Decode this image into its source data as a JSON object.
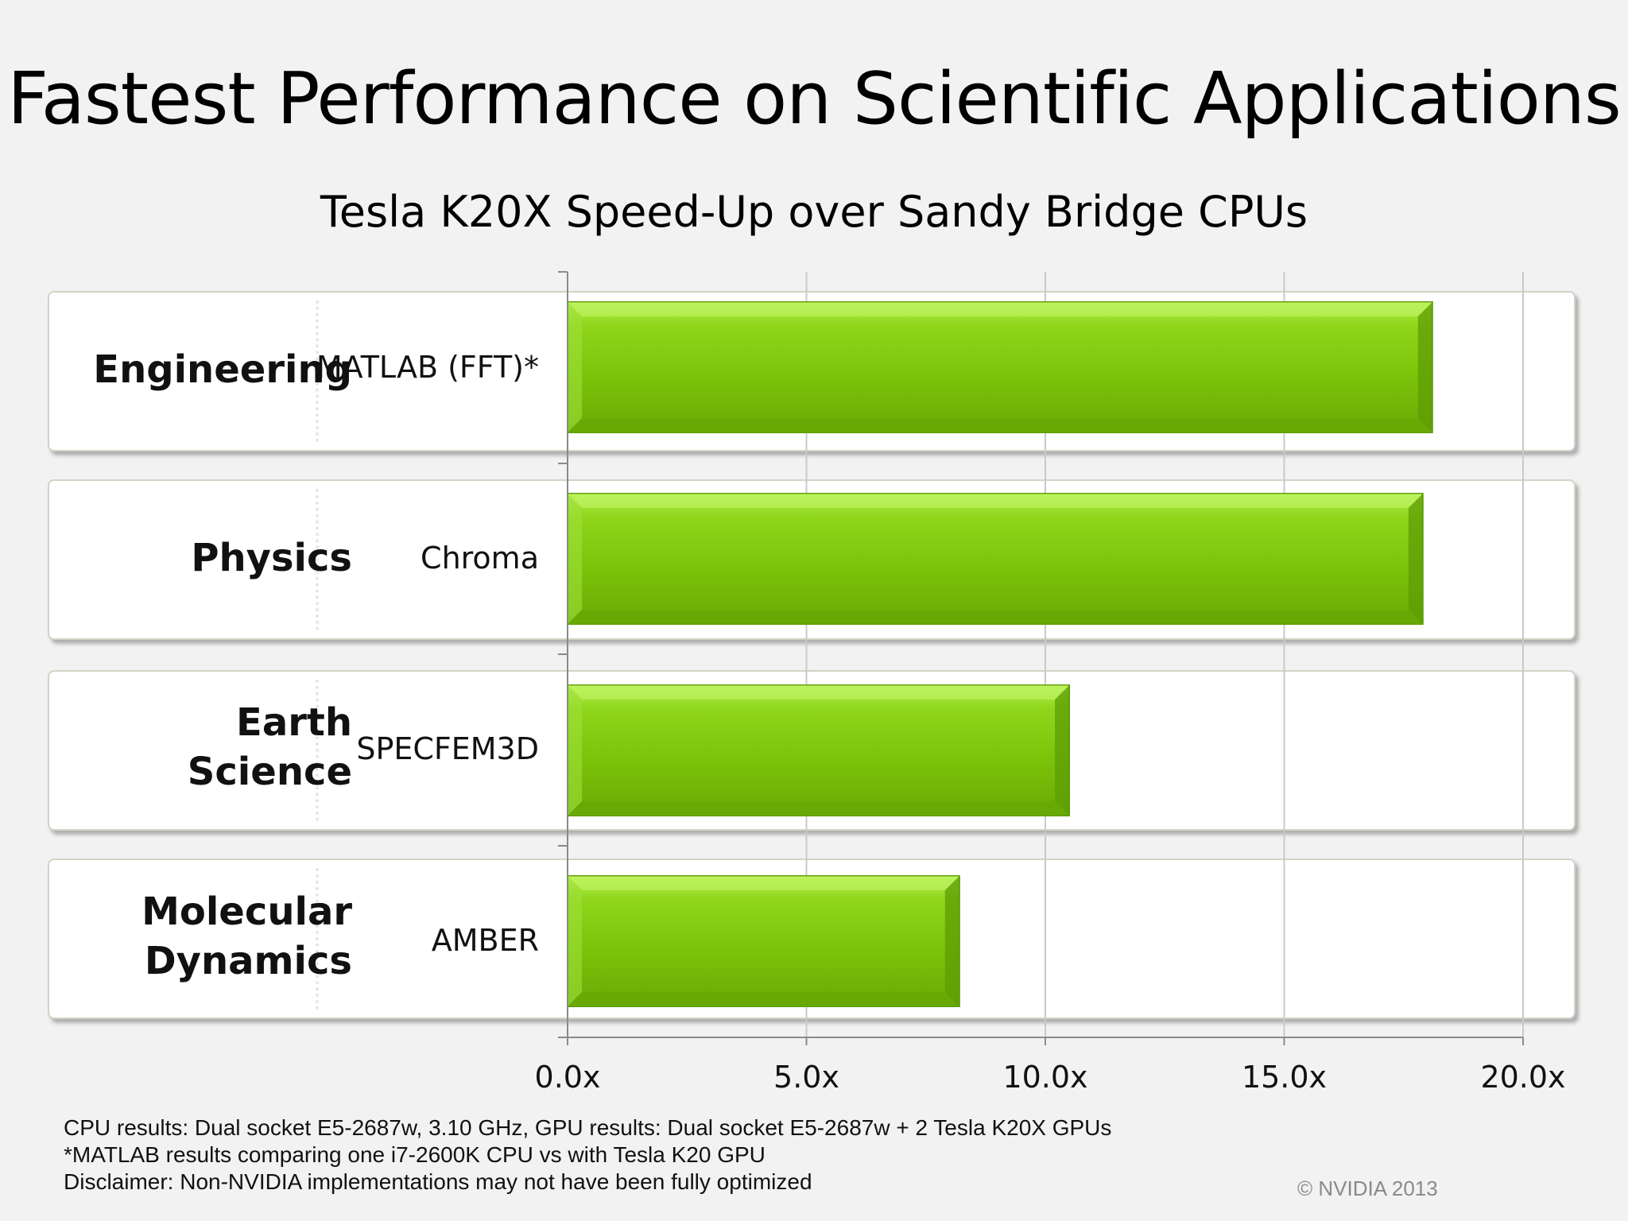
{
  "title": "Fastest Performance on Scientific Applications",
  "chart_data": {
    "type": "bar",
    "orientation": "horizontal",
    "title": "Tesla K20X Speed-Up over Sandy Bridge CPUs",
    "categories": [
      {
        "group": "Engineering",
        "application": "MATLAB (FFT)*"
      },
      {
        "group": "Physics",
        "application": "Chroma"
      },
      {
        "group": "Earth\nScience",
        "application": "SPECFEM3D"
      },
      {
        "group": "Molecular\nDynamics",
        "application": "AMBER"
      }
    ],
    "values": [
      18.1,
      17.9,
      10.5,
      8.2
    ],
    "xlim": [
      0,
      20
    ],
    "ticks": [
      0,
      5,
      10,
      15,
      20
    ],
    "tick_labels": [
      "0.0x",
      "5.0x",
      "10.0x",
      "15.0x",
      "20.0x"
    ],
    "grid": "vertical",
    "bar_color": "#7dc40a"
  },
  "footnotes": [
    "CPU results: Dual socket E5-2687w, 3.10 GHz, GPU results: Dual socket E5-2687w + 2 Tesla K20X GPUs",
    "*MATLAB results comparing one i7-2600K CPU vs with Tesla K20 GPU",
    "Disclaimer: Non-NVIDIA implementations may not have been fully optimized"
  ],
  "copyright": "© NVIDIA 2013"
}
